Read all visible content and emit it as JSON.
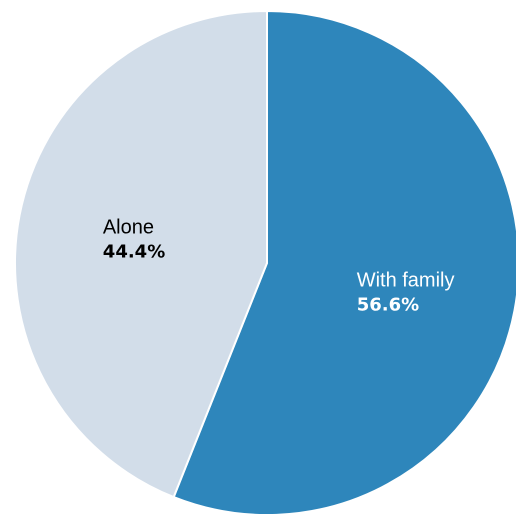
{
  "chart_data": {
    "type": "pie",
    "start_angle_deg": 0,
    "direction": "clockwise",
    "slices": [
      {
        "label": "With family",
        "value": 56.6,
        "value_label": "56.6%",
        "color": "#2e86bb",
        "text_color": "#ffffff"
      },
      {
        "label": "Alone",
        "value": 44.4,
        "value_label": "44.4%",
        "color": "#d2dde9",
        "text_color": "#000000"
      }
    ]
  }
}
